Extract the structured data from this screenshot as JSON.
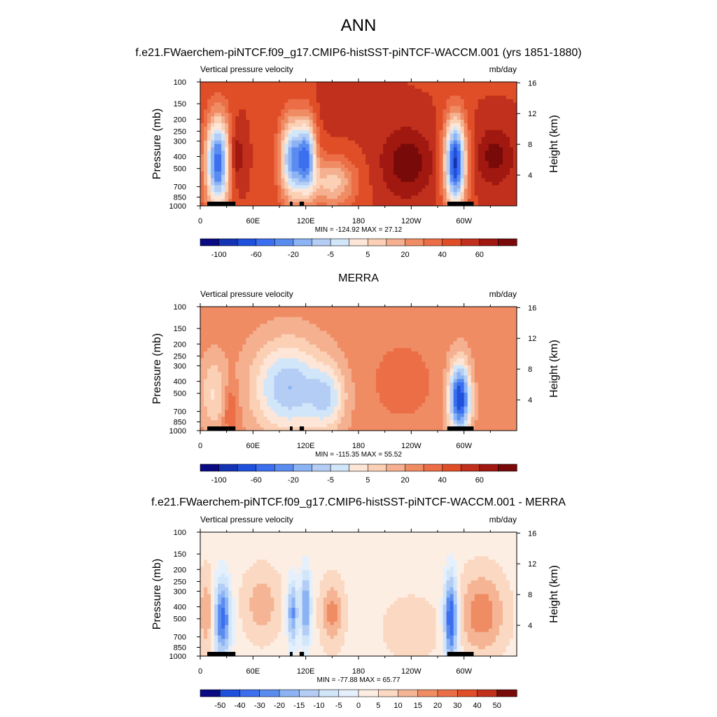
{
  "figure": {
    "title": "ANN"
  },
  "panel_titles": [
    "f.e21.FWaerchem-piNTCF.f09_g17.CMIP6-histSST-piNTCF-WACCM.001 (yrs 1851-1880)",
    "MERRA",
    "f.e21.FWaerchem-piNTCF.f09_g17.CMIP6-histSST-piNTCF-WACCM.001 - MERRA"
  ],
  "colors": {
    "full_palette": [
      "#0a0a82",
      "#1433b4",
      "#1e50dc",
      "#3c6ef0",
      "#5a8cf0",
      "#8cb4f5",
      "#b4cdf5",
      "#d2e6fa",
      "#fde6d7",
      "#fbd0b4",
      "#f5b090",
      "#f08c64",
      "#eb6e46",
      "#e04e28",
      "#c0301c",
      "#a01810",
      "#780a0a"
    ],
    "diff_palette": [
      "#0a0a82",
      "#1e50dc",
      "#3c6ef0",
      "#5a8cf0",
      "#8cb4f5",
      "#b4cdf5",
      "#d2e6fa",
      "#e6f0fc",
      "#fdeee4",
      "#fbd8c2",
      "#f5b494",
      "#f08c64",
      "#eb6e46",
      "#e04e28",
      "#c0301c",
      "#780a0a"
    ],
    "topography": "#000000"
  },
  "chart_data": [
    {
      "type": "heatmap",
      "subtitle_left": "Vertical pressure velocity",
      "subtitle_right": "mb/day",
      "ylabel": "Pressure (mb)",
      "ylabel_right": "Height (km)",
      "x_ticks": [
        "0",
        "60E",
        "120E",
        "180",
        "120W",
        "60W"
      ],
      "x_tick_lon": [
        0,
        60,
        120,
        180,
        240,
        300
      ],
      "xlim": [
        0,
        360
      ],
      "y_ticks": [
        100,
        150,
        200,
        250,
        300,
        400,
        500,
        700,
        850,
        1000
      ],
      "ylim": [
        1000,
        100
      ],
      "y_scale": "log",
      "height_ticks": [
        4,
        8,
        12,
        16
      ],
      "stats": "MIN = -124.92  MAX =  27.12",
      "min": -124.92,
      "max": 27.12,
      "colorbar_labels": [
        "-100",
        "-60",
        "-20",
        "-5",
        "5",
        "20",
        "40",
        "60"
      ],
      "colorbar_label_index": [
        1,
        3,
        5,
        7,
        9,
        11,
        13,
        15
      ],
      "palette": "full_palette",
      "regions": [
        {
          "lon": 20,
          "p": 450,
          "dlon": 14,
          "dp": 0.85,
          "value": -95
        },
        {
          "lon": 40,
          "p": 400,
          "dlon": 9,
          "dp": 0.55,
          "value": 22
        },
        {
          "lon": 105,
          "p": 420,
          "dlon": 14,
          "dp": 0.75,
          "value": -80
        },
        {
          "lon": 122,
          "p": 400,
          "dlon": 10,
          "dp": 0.7,
          "value": -70
        },
        {
          "lon": 150,
          "p": 650,
          "dlon": 26,
          "dp": 0.45,
          "value": -40
        },
        {
          "lon": 235,
          "p": 450,
          "dlon": 30,
          "dp": 0.65,
          "value": 25
        },
        {
          "lon": 290,
          "p": 450,
          "dlon": 12,
          "dp": 0.8,
          "value": -110
        },
        {
          "lon": 335,
          "p": 400,
          "dlon": 22,
          "dp": 0.55,
          "value": 22
        },
        {
          "lon": 170,
          "p": 160,
          "dlon": 40,
          "dp": 0.45,
          "value": 6
        }
      ]
    },
    {
      "type": "heatmap",
      "title": "MERRA",
      "subtitle_left": "Vertical pressure velocity",
      "subtitle_right": "mb/day",
      "ylabel": "Pressure (mb)",
      "ylabel_right": "Height (km)",
      "x_ticks": [
        "0",
        "60E",
        "120E",
        "180",
        "120W",
        "60W"
      ],
      "x_tick_lon": [
        0,
        60,
        120,
        180,
        240,
        300
      ],
      "xlim": [
        0,
        360
      ],
      "y_ticks": [
        100,
        150,
        200,
        250,
        300,
        400,
        500,
        700,
        850,
        1000
      ],
      "ylim": [
        1000,
        100
      ],
      "y_scale": "log",
      "height_ticks": [
        4,
        8,
        12,
        16
      ],
      "stats": "MIN = -115.35  MAX =  55.52",
      "min": -115.35,
      "max": 55.52,
      "colorbar_labels": [
        "-100",
        "-60",
        "-20",
        "-5",
        "5",
        "20",
        "40",
        "60"
      ],
      "colorbar_label_index": [
        1,
        3,
        5,
        7,
        9,
        11,
        13,
        15
      ],
      "palette": "full_palette",
      "regions": [
        {
          "lon": 15,
          "p": 500,
          "dlon": 14,
          "dp": 0.7,
          "value": -25
        },
        {
          "lon": 35,
          "p": 700,
          "dlon": 8,
          "dp": 0.5,
          "value": 20
        },
        {
          "lon": 100,
          "p": 450,
          "dlon": 40,
          "dp": 0.85,
          "value": -55
        },
        {
          "lon": 145,
          "p": 550,
          "dlon": 20,
          "dp": 0.6,
          "value": -35
        },
        {
          "lon": 230,
          "p": 400,
          "dlon": 30,
          "dp": 0.6,
          "value": 15
        },
        {
          "lon": 295,
          "p": 550,
          "dlon": 12,
          "dp": 0.65,
          "value": -95
        },
        {
          "lon": 340,
          "p": 300,
          "dlon": 25,
          "dp": 0.9,
          "value": 5
        }
      ]
    },
    {
      "type": "heatmap",
      "subtitle_left": "Vertical pressure velocity",
      "subtitle_right": "mb/day",
      "ylabel": "Pressure (mb)",
      "ylabel_right": "Height (km)",
      "x_ticks": [
        "0",
        "60E",
        "120E",
        "180",
        "120W",
        "60W"
      ],
      "x_tick_lon": [
        0,
        60,
        120,
        180,
        240,
        300
      ],
      "xlim": [
        0,
        360
      ],
      "y_ticks": [
        100,
        150,
        200,
        250,
        300,
        400,
        500,
        700,
        850,
        1000
      ],
      "ylim": [
        1000,
        100
      ],
      "y_scale": "log",
      "height_ticks": [
        4,
        8,
        12,
        16
      ],
      "stats": "MIN = -77.88  MAX =  65.77",
      "min": -77.88,
      "max": 65.77,
      "colorbar_labels": [
        "-50",
        "-40",
        "-30",
        "-20",
        "-15",
        "-10",
        "-5",
        "0",
        "5",
        "10",
        "15",
        "20",
        "30",
        "40",
        "50"
      ],
      "colorbar_label_index": [
        1,
        2,
        3,
        4,
        5,
        6,
        7,
        8,
        9,
        10,
        11,
        12,
        13,
        14,
        15
      ],
      "palette": "diff_palette",
      "regions": [
        {
          "lon": 8,
          "p": 450,
          "dlon": 9,
          "dp": 0.7,
          "value": 22
        },
        {
          "lon": 25,
          "p": 500,
          "dlon": 10,
          "dp": 0.75,
          "value": -55
        },
        {
          "lon": 70,
          "p": 380,
          "dlon": 20,
          "dp": 0.6,
          "value": 18
        },
        {
          "lon": 105,
          "p": 450,
          "dlon": 6,
          "dp": 0.6,
          "value": -45
        },
        {
          "lon": 120,
          "p": 400,
          "dlon": 6,
          "dp": 0.7,
          "value": -45
        },
        {
          "lon": 150,
          "p": 450,
          "dlon": 12,
          "dp": 0.55,
          "value": 25
        },
        {
          "lon": 240,
          "p": 600,
          "dlon": 30,
          "dp": 0.55,
          "value": 10
        },
        {
          "lon": 285,
          "p": 500,
          "dlon": 8,
          "dp": 0.8,
          "value": -65
        },
        {
          "lon": 320,
          "p": 450,
          "dlon": 25,
          "dp": 0.7,
          "value": 28
        }
      ]
    }
  ]
}
